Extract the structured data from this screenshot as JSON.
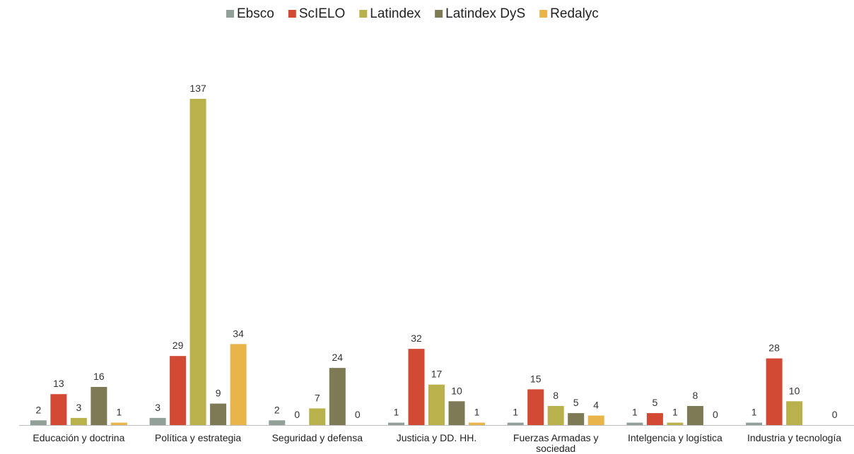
{
  "chart_data": {
    "type": "bar",
    "categories": [
      [
        "Educación y doctrina"
      ],
      [
        "Política y estrategia"
      ],
      [
        "Seguridad y defensa"
      ],
      [
        "Justicia y DD. HH."
      ],
      [
        "Fuerzas Armadas y",
        "sociedad"
      ],
      [
        "Intelgencia y logística"
      ],
      [
        "Industria y tecnología"
      ]
    ],
    "series": [
      {
        "name": "Ebsco",
        "color": "#92A09A",
        "values": [
          2,
          3,
          2,
          1,
          1,
          1,
          1
        ]
      },
      {
        "name": "ScIELO",
        "color": "#D34A34",
        "values": [
          13,
          29,
          0,
          32,
          15,
          5,
          28
        ]
      },
      {
        "name": "Latindex",
        "color": "#B9B24C",
        "values": [
          3,
          137,
          7,
          17,
          8,
          1,
          10
        ]
      },
      {
        "name": "Latindex DyS",
        "color": "#7E7A55",
        "values": [
          16,
          9,
          24,
          10,
          5,
          8,
          null
        ]
      },
      {
        "name": "Redalyc",
        "color": "#E9B44A",
        "values": [
          1,
          34,
          0,
          1,
          4,
          0,
          0
        ]
      }
    ],
    "ylim": [
      0,
      140
    ],
    "legend_position": "top",
    "grid": false,
    "title": "",
    "xlabel": "",
    "ylabel": ""
  }
}
